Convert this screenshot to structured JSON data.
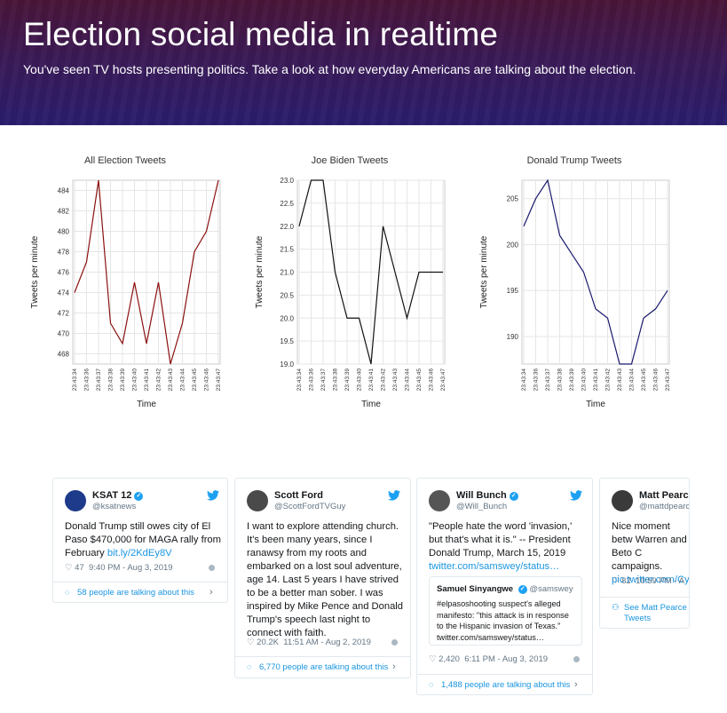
{
  "hero": {
    "title": "Election social media in realtime",
    "subtitle": "You've seen TV hosts presenting politics. Take a look at how everyday Americans are talking about the election."
  },
  "chart_data": [
    {
      "type": "line",
      "title": "All Election Tweets",
      "xlabel": "Time",
      "ylabel": "Tweets per minute",
      "x": [
        "23:43:34",
        "23:43:36",
        "23:43:37",
        "23:43:38",
        "23:43:39",
        "23:43:40",
        "23:43:41",
        "23:43:42",
        "23:43:43",
        "23:43:44",
        "23:43:45",
        "23:43:46",
        "23:43:47"
      ],
      "values": [
        474,
        477,
        485,
        471,
        469,
        475,
        469,
        475,
        467,
        471,
        478,
        480,
        485
      ],
      "ylim": [
        467,
        485
      ],
      "yticks": [
        468,
        470,
        472,
        474,
        476,
        478,
        480,
        482,
        484
      ],
      "color": "#8b1010",
      "grid": true
    },
    {
      "type": "line",
      "title": "Joe Biden Tweets",
      "xlabel": "Time",
      "ylabel": "Tweets per minute",
      "x": [
        "23:43:34",
        "23:43:36",
        "23:43:37",
        "23:43:38",
        "23:43:39",
        "23:43:40",
        "23:43:41",
        "23:43:42",
        "23:43:43",
        "23:43:44",
        "23:43:45",
        "23:43:46",
        "23:43:47"
      ],
      "values": [
        22.0,
        23.0,
        23.0,
        21.0,
        20.0,
        20.0,
        19.0,
        22.0,
        21.0,
        20.0,
        21.0,
        21.0,
        21.0
      ],
      "ylim": [
        19.0,
        23.0
      ],
      "yticks": [
        "19.0",
        "19.5",
        "20.0",
        "20.5",
        "21.0",
        "21.5",
        "22.0",
        "22.5",
        "23.0"
      ],
      "color": "#111111",
      "grid": true
    },
    {
      "type": "line",
      "title": "Donald Trump Tweets",
      "xlabel": "Time",
      "ylabel": "Tweets per minute",
      "x": [
        "23:43:34",
        "23:43:36",
        "23:43:37",
        "23:43:38",
        "23:43:39",
        "23:43:40",
        "23:43:41",
        "23:43:42",
        "23:43:43",
        "23:43:44",
        "23:43:45",
        "23:43:46",
        "23:43:47"
      ],
      "values": [
        202,
        205,
        207,
        201,
        199,
        197,
        193,
        192,
        187,
        187,
        192,
        193,
        195
      ],
      "ylim": [
        187,
        207
      ],
      "yticks": [
        190,
        195,
        200,
        205
      ],
      "color": "#1a1a6e",
      "grid": true
    }
  ],
  "tweets": [
    {
      "name": "KSAT 12",
      "handle": "@ksatnews",
      "verified": true,
      "text": "Donald Trump still owes city of El Paso $470,000 for MAGA rally from February ",
      "link": "bit.ly/2KdEy8V",
      "likes": "47",
      "time": "9:40 PM - Aug 3, 2019",
      "footer": "58 people are talking about this"
    },
    {
      "name": "Scott Ford",
      "handle": "@ScottFordTVGuy",
      "verified": false,
      "text": "I want to explore attending church. It's been many years, since I ranawsy from my roots and embarked on a lost soul adventure, age 14. Last 5 years I have strived to be a better man sober. I was inspired by Mike Pence and Donald Trump's speech last night to connect with faith.",
      "likes": "20.2K",
      "time": "11:51 AM - Aug 2, 2019",
      "footer": "6,770 people are talking about this"
    },
    {
      "name": "Will Bunch",
      "handle": "@Will_Bunch",
      "verified": true,
      "text": "\"People hate the word 'invasion,' but that's what it is.\" -- President Donald Trump, March 15, 2019",
      "link": "twitter.com/samswey/status…",
      "quote_name": "Samuel Sinyangwe",
      "quote_handle": "@samswey",
      "quote_text": "#elpasoshooting suspect's alleged manifesto: \"this attack is in response to the Hispanic invasion of Texas.\" twitter.com/samswey/status…",
      "likes": "2,420",
      "time": "6:11 PM - Aug 3, 2019",
      "footer": "1,488 people are talking about this"
    },
    {
      "name": "Matt Pearce",
      "handle": "@mattdpearce",
      "verified": true,
      "text": "Nice moment betw Warren and Beto C campaigns.",
      "link": "pic.twitter.com/Cyx",
      "likes": "82",
      "time": "10:59 PM - A",
      "footer": "See Matt Pearce Tweets"
    }
  ]
}
